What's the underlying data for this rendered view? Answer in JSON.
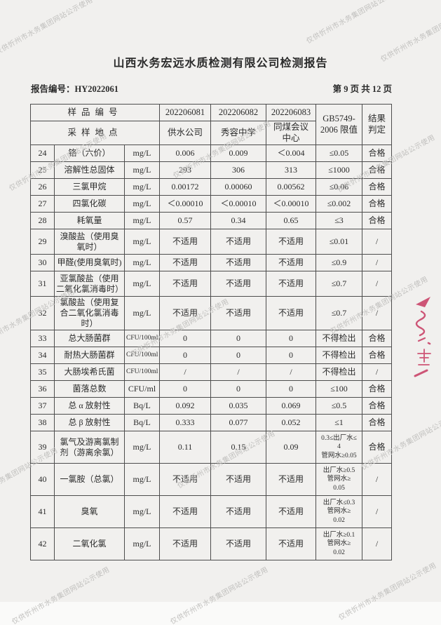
{
  "colors": {
    "paper": "#f1f0ee",
    "watermark": "#c1c0be",
    "stamp_red": "#c73a62",
    "border": "#4d4d4d"
  },
  "page": {
    "title": "山西水务宏远水质检测有限公司检测报告",
    "report_no": "报告编号：HY2022061",
    "page_indicator": "第 9 页 共 12 页",
    "watermark": "仅供忻州市水务集团网站公示使用"
  },
  "table": {
    "header": {
      "sample_id_label": "样品编号",
      "location_label": "采样地点",
      "sample_ids": [
        "202206081",
        "202206082",
        "202206083"
      ],
      "locations": [
        "供水公司",
        "秀容中学",
        "同煤会议\n中心"
      ],
      "limit_header": "GB5749-\n2006 限值",
      "result_header": "结果\n判定"
    },
    "rows": [
      {
        "no": "24",
        "name": "铬（六价）",
        "unit": "mg/L",
        "v": [
          "0.006",
          "0.009",
          "＜0.004"
        ],
        "limit": "≤0.05",
        "result": "合格"
      },
      {
        "no": "25",
        "name": "溶解性总固体",
        "unit": "mg/L",
        "v": [
          "293",
          "306",
          "313"
        ],
        "limit": "≤1000",
        "result": "合格"
      },
      {
        "no": "26",
        "name": "三氯甲烷",
        "unit": "mg/L",
        "v": [
          "0.00172",
          "0.00060",
          "0.00562"
        ],
        "limit": "≤0.06",
        "result": "合格"
      },
      {
        "no": "27",
        "name": "四氯化碳",
        "unit": "mg/L",
        "v": [
          "＜0.00010",
          "＜0.00010",
          "＜0.00010"
        ],
        "limit": "≤0.002",
        "result": "合格"
      },
      {
        "no": "28",
        "name": "耗氧量",
        "unit": "mg/L",
        "v": [
          "0.57",
          "0.34",
          "0.65"
        ],
        "limit": "≤3",
        "result": "合格"
      },
      {
        "no": "29",
        "name": "溴酸盐（使用臭氧时）",
        "unit": "mg/L",
        "v": [
          "不适用",
          "不适用",
          "不适用"
        ],
        "limit": "≤0.01",
        "result": "/"
      },
      {
        "no": "30",
        "name": "甲醛(使用臭氧时)",
        "unit": "mg/L",
        "v": [
          "不适用",
          "不适用",
          "不适用"
        ],
        "limit": "≤0.9",
        "result": "/"
      },
      {
        "no": "31",
        "name": "亚氯酸盐（使用二氧化氯消毒时）",
        "unit": "mg/L",
        "v": [
          "不适用",
          "不适用",
          "不适用"
        ],
        "limit": "≤0.7",
        "result": "/"
      },
      {
        "no": "32",
        "name": "氯酸盐（使用复合二氧化氯消毒时）",
        "unit": "mg/L",
        "v": [
          "不适用",
          "不适用",
          "不适用"
        ],
        "limit": "≤0.7",
        "result": "/"
      },
      {
        "no": "33",
        "name": "总大肠菌群",
        "unit": "CFU/100ml",
        "v": [
          "0",
          "0",
          "0"
        ],
        "limit": "不得检出",
        "result": "合格"
      },
      {
        "no": "34",
        "name": "耐热大肠菌群",
        "unit": "CFU/100ml",
        "v": [
          "0",
          "0",
          "0"
        ],
        "limit": "不得检出",
        "result": "合格"
      },
      {
        "no": "35",
        "name": "大肠埃希氏菌",
        "unit": "CFU/100ml",
        "v": [
          "/",
          "/",
          "/"
        ],
        "limit": "不得检出",
        "result": "/"
      },
      {
        "no": "36",
        "name": "菌落总数",
        "unit": "CFU/ml",
        "v": [
          "0",
          "0",
          "0"
        ],
        "limit": "≤100",
        "result": "合格"
      },
      {
        "no": "37",
        "name": "总 α 放射性",
        "unit": "Bq/L",
        "v": [
          "0.092",
          "0.035",
          "0.069"
        ],
        "limit": "≤0.5",
        "result": "合格"
      },
      {
        "no": "38",
        "name": "总 β 放射性",
        "unit": "Bq/L",
        "v": [
          "0.333",
          "0.077",
          "0.052"
        ],
        "limit": "≤1",
        "result": "合格"
      },
      {
        "no": "39",
        "name": "氯气及游离氯制剂（游离余氯）",
        "unit": "mg/L",
        "v": [
          "0.11",
          "0.15",
          "0.09"
        ],
        "limit": "0.3≤出厂水≤\n4\n管网水≥0.05",
        "result": "合格"
      },
      {
        "no": "40",
        "name": "一氯胺（总氯）",
        "unit": "mg/L",
        "v": [
          "不适用",
          "不适用",
          "不适用"
        ],
        "limit": "出厂水≥0.5\n管网水≥\n0.05",
        "result": "/"
      },
      {
        "no": "41",
        "name": "臭氧",
        "unit": "mg/L",
        "v": [
          "不适用",
          "不适用",
          "不适用"
        ],
        "limit": "出厂水≤0.3\n管网水≥\n0.02",
        "result": "/"
      },
      {
        "no": "42",
        "name": "二氧化氯",
        "unit": "mg/L",
        "v": [
          "不适用",
          "不适用",
          "不适用"
        ],
        "limit": "出厂水≥0.1\n管网水≥\n0.02",
        "result": "/"
      }
    ]
  }
}
